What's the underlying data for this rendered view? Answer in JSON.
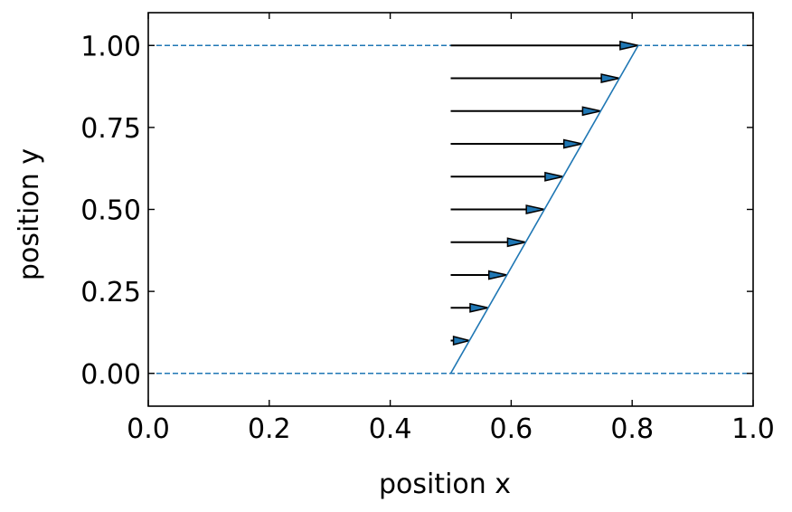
{
  "chart_data": {
    "type": "line",
    "title": "",
    "xlabel": "position x",
    "ylabel": "position y",
    "xlim": [
      0.0,
      1.0
    ],
    "ylim": [
      -0.1,
      1.1
    ],
    "xticks": [
      0.0,
      0.2,
      0.4,
      0.6,
      0.8,
      1.0
    ],
    "xtick_labels": [
      "0.0",
      "0.2",
      "0.4",
      "0.6",
      "0.8",
      "1.0"
    ],
    "yticks": [
      0.0,
      0.25,
      0.5,
      0.75,
      1.0
    ],
    "ytick_labels": [
      "0.00",
      "0.25",
      "0.50",
      "0.75",
      "1.00"
    ],
    "grid": false,
    "legend": "none",
    "profile_line": {
      "x": [
        0.5,
        0.81
      ],
      "y": [
        0.0,
        1.0
      ],
      "color": "#1f77b4"
    },
    "boundary_lines": {
      "y": [
        0.0,
        1.0
      ],
      "style": "dashed",
      "color": "#1f77b4"
    },
    "arrows": {
      "x_start": 0.5,
      "y": [
        0.1,
        0.2,
        0.3,
        0.4,
        0.5,
        0.6,
        0.7,
        0.8,
        0.9,
        1.0
      ],
      "x_end": [
        0.531,
        0.562,
        0.593,
        0.624,
        0.655,
        0.686,
        0.717,
        0.748,
        0.779,
        0.81
      ],
      "shaft_color": "#000000",
      "head_color": "#1f77b4"
    }
  }
}
